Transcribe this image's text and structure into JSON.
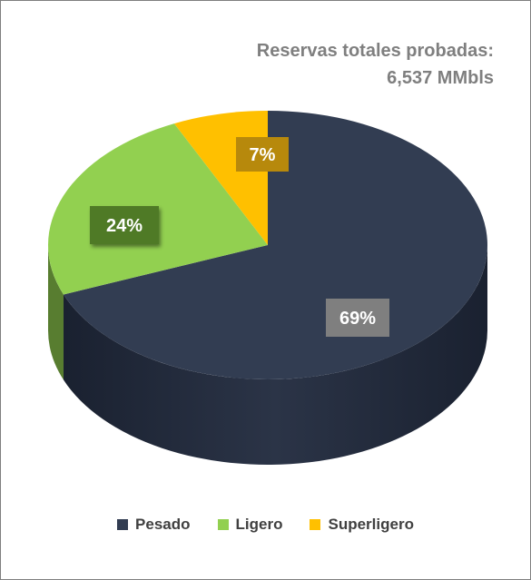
{
  "chart_data": {
    "type": "pie",
    "title": "Reservas totales probadas:",
    "subtitle": "6,537 MMbls",
    "categories": [
      "Pesado",
      "Ligero",
      "Superligero"
    ],
    "values": [
      69,
      24,
      7
    ],
    "data_labels": [
      "69%",
      "24%",
      "7%"
    ],
    "colors": [
      "#323d52",
      "#92d050",
      "#ffc000"
    ],
    "legend_position": "bottom"
  }
}
